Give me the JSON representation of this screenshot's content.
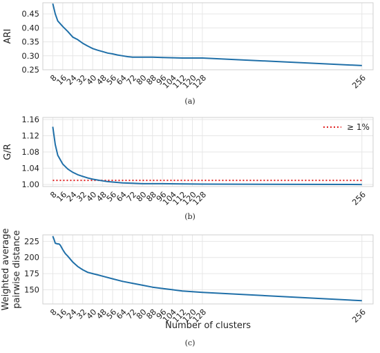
{
  "chart_data": [
    {
      "type": "line",
      "xlabel": "",
      "ylabel": "ARI",
      "xticks": [
        8,
        16,
        24,
        32,
        40,
        48,
        56,
        64,
        72,
        80,
        88,
        96,
        104,
        112,
        120,
        128,
        256
      ],
      "yticks": [
        "0.25",
        "0.30",
        "0.35",
        "0.40",
        "0.45"
      ],
      "ylim": [
        0.25,
        0.49
      ],
      "xlim": [
        0,
        265
      ],
      "grid": true,
      "caption": "(a)",
      "series": [
        {
          "x": [
            8,
            10,
            12,
            16,
            20,
            24,
            28,
            32,
            36,
            40,
            44,
            48,
            52,
            56,
            60,
            64,
            68,
            72,
            80,
            88,
            96,
            104,
            112,
            120,
            128,
            256
          ],
          "values": [
            0.487,
            0.45,
            0.425,
            0.405,
            0.387,
            0.367,
            0.358,
            0.345,
            0.335,
            0.326,
            0.32,
            0.315,
            0.31,
            0.307,
            0.303,
            0.3,
            0.297,
            0.295,
            0.295,
            0.295,
            0.294,
            0.293,
            0.292,
            0.292,
            0.292,
            0.265
          ]
        }
      ]
    },
    {
      "type": "line",
      "xlabel": "",
      "ylabel": "G/R",
      "xticks": [
        8,
        16,
        24,
        32,
        40,
        48,
        56,
        64,
        72,
        80,
        88,
        96,
        104,
        112,
        120,
        128,
        256
      ],
      "yticks": [
        "1.00",
        "1.04",
        "1.08",
        "1.12",
        "1.16"
      ],
      "ylim": [
        0.995,
        1.165
      ],
      "xlim": [
        0,
        265
      ],
      "grid": true,
      "caption": "(b)",
      "legend": {
        "position": "top-right",
        "entries": [
          "≥ 1%"
        ]
      },
      "reference_line": {
        "y": 1.01,
        "color": "#e02020",
        "style": "dotted"
      },
      "series": [
        {
          "x": [
            8,
            10,
            12,
            16,
            20,
            24,
            28,
            32,
            36,
            40,
            44,
            48,
            52,
            56,
            60,
            64,
            72,
            80,
            96,
            128,
            256
          ],
          "values": [
            1.142,
            1.098,
            1.072,
            1.05,
            1.038,
            1.03,
            1.024,
            1.02,
            1.016,
            1.013,
            1.011,
            1.009,
            1.007,
            1.006,
            1.005,
            1.004,
            1.003,
            1.002,
            1.002,
            1.001,
            1.0
          ]
        }
      ]
    },
    {
      "type": "line",
      "xlabel": "Number of clusters",
      "ylabel": "Weighted average pairwise distance",
      "ylabel_lines": [
        "Weighted average",
        "pairwise distance"
      ],
      "xticks": [
        8,
        16,
        24,
        32,
        40,
        48,
        56,
        64,
        72,
        80,
        88,
        96,
        104,
        112,
        120,
        128,
        256
      ],
      "yticks": [
        "150",
        "175",
        "200",
        "225"
      ],
      "ylim": [
        128,
        235
      ],
      "xlim": [
        0,
        265
      ],
      "grid": true,
      "caption": "(c)",
      "series": [
        {
          "x": [
            8,
            9,
            10,
            12,
            13,
            14,
            16,
            18,
            20,
            24,
            28,
            32,
            36,
            40,
            44,
            48,
            56,
            64,
            72,
            80,
            88,
            96,
            104,
            112,
            120,
            128,
            256
          ],
          "values": [
            233,
            228,
            222,
            221,
            221,
            219,
            212,
            206,
            202,
            193,
            186,
            181,
            177,
            175,
            173,
            171,
            167,
            163,
            160,
            157,
            154,
            152,
            150,
            148,
            147,
            146,
            133
          ]
        }
      ]
    }
  ],
  "colors": {
    "series": "#1f6fa8",
    "reference": "#e02020",
    "grid": "#e6e6e6"
  }
}
